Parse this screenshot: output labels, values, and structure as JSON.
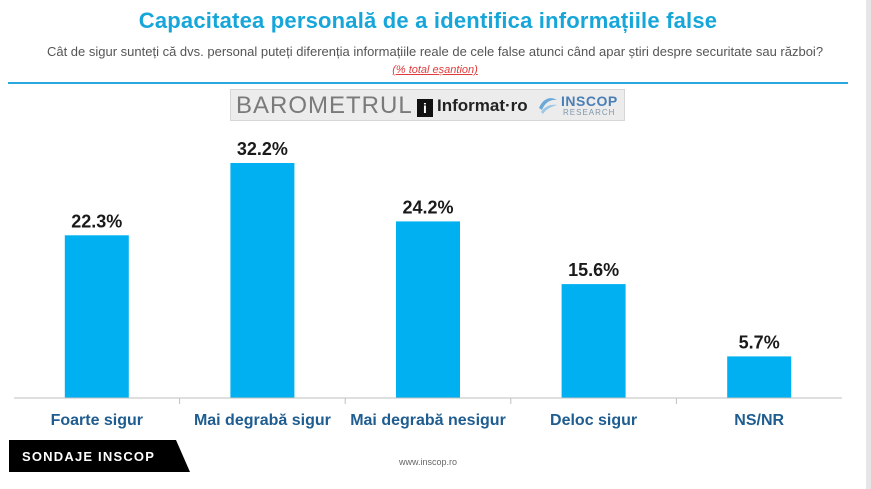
{
  "header": {
    "title": "Capacitatea personală de a identifica informațiile false",
    "subtitle": "Cât de sigur sunteți că dvs. personal puteți diferenția informațiile reale de cele false atunci când apar știri despre securitate sau război?",
    "subtitle_note": "(% total eșantion)"
  },
  "logos": {
    "barometrul": "BAROMETRUL",
    "informat_mark": "i",
    "informat": "Informat",
    "informat_suffix": "·ro",
    "inscop": "INSCOP",
    "research": "RESEARCH"
  },
  "chart_data": {
    "type": "bar",
    "categories": [
      "Foarte sigur",
      "Mai degrabă sigur",
      "Mai degrabă nesigur",
      "Deloc sigur",
      "NS/NR"
    ],
    "values": [
      22.3,
      32.2,
      24.2,
      15.6,
      5.7
    ],
    "value_labels": [
      "22.3%",
      "32.2%",
      "24.2%",
      "15.6%",
      "5.7%"
    ],
    "unit": "%",
    "ylim": [
      0,
      33
    ],
    "grid": false,
    "legend": "none",
    "colors": {
      "bar": "#00b0f0"
    }
  },
  "badge": {
    "label": "SONDAJE INSCOP"
  },
  "footer": {
    "url": "www.inscop.ro"
  }
}
